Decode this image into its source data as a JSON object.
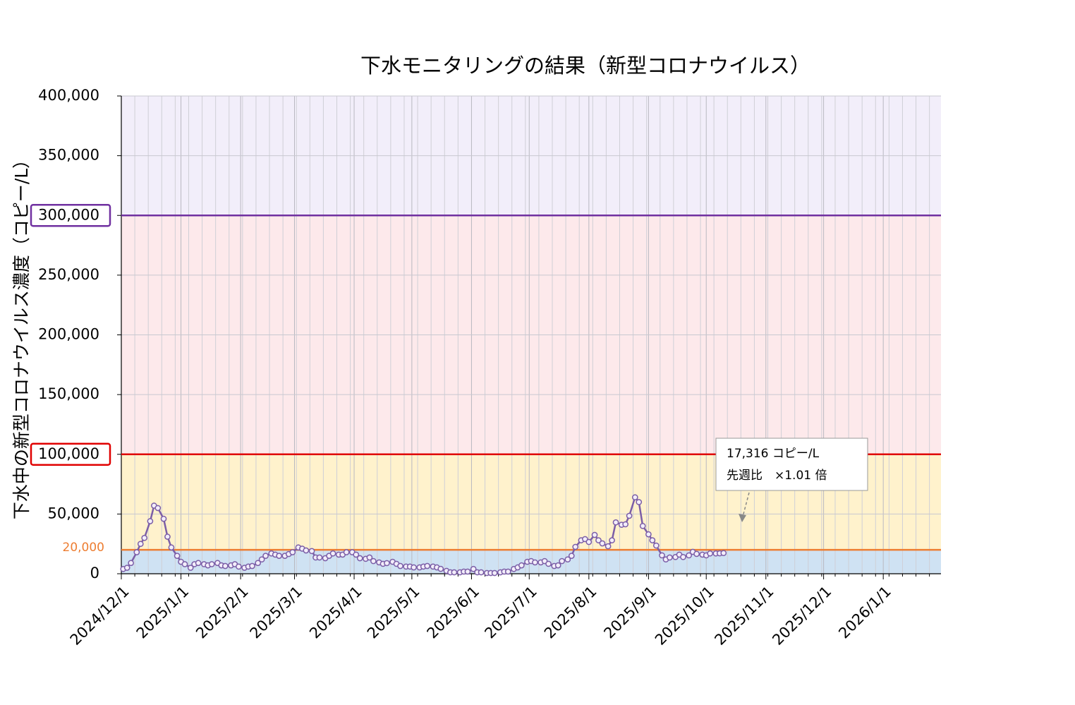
{
  "chart_data": {
    "type": "line",
    "title": "下水モニタリングの結果（新型コロナウイルス）",
    "ylabel": "下水中の新型コロナウイルス濃度（コピー/L）",
    "x": [
      "2024/12/2",
      "2024/12/4",
      "2024/12/6",
      "2024/12/9",
      "2024/12/11",
      "2024/12/13",
      "2024/12/16",
      "2024/12/18",
      "2024/12/20",
      "2024/12/23",
      "2024/12/25",
      "2024/12/27",
      "2024/12/30",
      "2025/1/1",
      "2025/1/3",
      "2025/1/6",
      "2025/1/8",
      "2025/1/10",
      "2025/1/13",
      "2025/1/15",
      "2025/1/17",
      "2025/1/20",
      "2025/1/22",
      "2025/1/24",
      "2025/1/27",
      "2025/1/29",
      "2025/1/31",
      "2025/2/3",
      "2025/2/5",
      "2025/2/7",
      "2025/2/10",
      "2025/2/12",
      "2025/2/14",
      "2025/2/17",
      "2025/2/19",
      "2025/2/21",
      "2025/2/24",
      "2025/2/26",
      "2025/2/28",
      "2025/3/3",
      "2025/3/5",
      "2025/3/7",
      "2025/3/10",
      "2025/3/12",
      "2025/3/14",
      "2025/3/17",
      "2025/3/19",
      "2025/3/21",
      "2025/3/24",
      "2025/3/26",
      "2025/3/28",
      "2025/3/31",
      "2025/4/2",
      "2025/4/4",
      "2025/4/7",
      "2025/4/9",
      "2025/4/11",
      "2025/4/14",
      "2025/4/16",
      "2025/4/18",
      "2025/4/21",
      "2025/4/23",
      "2025/4/25",
      "2025/4/28",
      "2025/4/30",
      "2025/5/2",
      "2025/5/5",
      "2025/5/7",
      "2025/5/9",
      "2025/5/12",
      "2025/5/14",
      "2025/5/16",
      "2025/5/19",
      "2025/5/21",
      "2025/5/23",
      "2025/5/26",
      "2025/5/28",
      "2025/5/30",
      "2025/6/2",
      "2025/6/4",
      "2025/6/6",
      "2025/6/9",
      "2025/6/11",
      "2025/6/13",
      "2025/6/16",
      "2025/6/18",
      "2025/6/20",
      "2025/6/23",
      "2025/6/25",
      "2025/6/27",
      "2025/6/30",
      "2025/7/2",
      "2025/7/4",
      "2025/7/7",
      "2025/7/9",
      "2025/7/11",
      "2025/7/14",
      "2025/7/16",
      "2025/7/18",
      "2025/7/21",
      "2025/7/23",
      "2025/7/25",
      "2025/7/28",
      "2025/7/30",
      "2025/8/1",
      "2025/8/4",
      "2025/8/6",
      "2025/8/8",
      "2025/8/11",
      "2025/8/13",
      "2025/8/15",
      "2025/8/18",
      "2025/8/20",
      "2025/8/22",
      "2025/8/25",
      "2025/8/27",
      "2025/8/29",
      "2025/9/1",
      "2025/9/3",
      "2025/9/5",
      "2025/9/8",
      "2025/9/10",
      "2025/9/12",
      "2025/9/15",
      "2025/9/17",
      "2025/9/19",
      "2025/9/22",
      "2025/9/24",
      "2025/9/26",
      "2025/9/29",
      "2025/10/1",
      "2025/10/3",
      "2025/10/6",
      "2025/10/8",
      "2025/10/10"
    ],
    "series": [
      {
        "color": "#7b5ea7",
        "values": [
          4000,
          5000,
          9000,
          18000,
          25000,
          30000,
          44000,
          57000,
          55000,
          46000,
          31000,
          22000,
          15000,
          10000,
          8000,
          5000,
          8000,
          9000,
          8000,
          7000,
          8000,
          9000,
          7000,
          6500,
          7000,
          8000,
          6000,
          5000,
          6000,
          6500,
          9000,
          12000,
          15000,
          17000,
          16000,
          15000,
          15000,
          16500,
          18000,
          22000,
          21000,
          19500,
          19000,
          13600,
          13600,
          13000,
          15000,
          17000,
          16000,
          16000,
          18000,
          18000,
          16000,
          13000,
          12500,
          13600,
          10600,
          9500,
          8300,
          8900,
          10000,
          8300,
          6500,
          6000,
          6000,
          5300,
          5300,
          6000,
          6500,
          6000,
          5300,
          4100,
          2400,
          1200,
          1200,
          1200,
          1800,
          1800,
          4000,
          1200,
          1200,
          600,
          600,
          600,
          1200,
          1800,
          1800,
          4000,
          5300,
          7000,
          10000,
          10600,
          9500,
          9500,
          10600,
          8300,
          6500,
          7000,
          10600,
          12000,
          15000,
          22500,
          28000,
          29000,
          26600,
          32500,
          28000,
          25400,
          23000,
          28000,
          43000,
          41000,
          41400,
          48500,
          64000,
          60000,
          40000,
          33000,
          28000,
          23600,
          15400,
          12000,
          13600,
          14000,
          16000,
          14000,
          15400,
          18300,
          16600,
          16000,
          15400,
          17000,
          17000,
          17100,
          17316
        ]
      }
    ],
    "xlim": [
      "2024/12/1",
      "2026/1/31"
    ],
    "xticks": [
      "2024/12/1",
      "2025/1/1",
      "2025/2/1",
      "2025/3/1",
      "2025/4/1",
      "2025/5/1",
      "2025/6/1",
      "2025/7/1",
      "2025/8/1",
      "2025/9/1",
      "2025/10/1",
      "2025/11/1",
      "2025/12/1",
      "2026/1/1"
    ],
    "xminorticks": [
      "2024/12/8",
      "2024/12/15",
      "2024/12/22",
      "2024/12/29",
      "2025/1/5",
      "2025/1/12",
      "2025/1/19",
      "2025/1/26",
      "2025/2/2",
      "2025/2/9",
      "2025/2/16",
      "2025/2/23",
      "2025/3/2",
      "2025/3/9",
      "2025/3/16",
      "2025/3/23",
      "2025/3/30",
      "2025/4/6",
      "2025/4/13",
      "2025/4/20",
      "2025/4/27",
      "2025/5/4",
      "2025/5/11",
      "2025/5/18",
      "2025/5/25",
      "2025/6/8",
      "2025/6/15",
      "2025/6/22",
      "2025/6/29",
      "2025/7/6",
      "2025/7/13",
      "2025/7/20",
      "2025/7/27",
      "2025/8/3",
      "2025/8/10",
      "2025/8/17",
      "2025/8/24",
      "2025/8/31",
      "2025/9/7",
      "2025/9/14",
      "2025/9/21",
      "2025/9/28",
      "2025/10/5",
      "2025/10/12",
      "2025/10/19",
      "2025/10/26",
      "2025/11/2",
      "2025/11/9",
      "2025/11/16",
      "2025/11/23",
      "2025/11/30",
      "2025/12/7",
      "2025/12/14",
      "2025/12/21",
      "2025/12/28",
      "2026/1/4",
      "2026/1/11",
      "2026/1/18",
      "2026/1/25"
    ],
    "ylim": [
      0,
      400000
    ],
    "yticks": [
      0,
      {
        "value": 50000,
        "label": "50,000"
      },
      {
        "value": 100000,
        "label": "100,000"
      },
      {
        "value": 150000,
        "label": "150,000"
      },
      {
        "value": 200000,
        "label": "200,000"
      },
      {
        "value": 250000,
        "label": "250,000"
      },
      {
        "value": 300000,
        "label": "300,000"
      },
      {
        "value": 350000,
        "label": "350,000"
      },
      {
        "value": 400000,
        "label": "400,000"
      }
    ],
    "grid": true,
    "bands": [
      {
        "from": 0,
        "to": 20000,
        "color": "#cfe2f3"
      },
      {
        "from": 20000,
        "to": 100000,
        "color": "#fff2cc"
      },
      {
        "from": 100000,
        "to": 300000,
        "color": "#fde9eb"
      },
      {
        "from": 300000,
        "to": 400000,
        "color": "#f2eefa"
      }
    ],
    "thresholds": [
      {
        "value": 20000,
        "label": "20,000",
        "color": "#ed7d31"
      },
      {
        "value": 100000,
        "color": "#e00000"
      },
      {
        "value": 300000,
        "color": "#7030a0"
      }
    ],
    "annotation": {
      "lines": [
        "17,316 コピー/L",
        "先週比　×1.01 倍"
      ]
    }
  }
}
